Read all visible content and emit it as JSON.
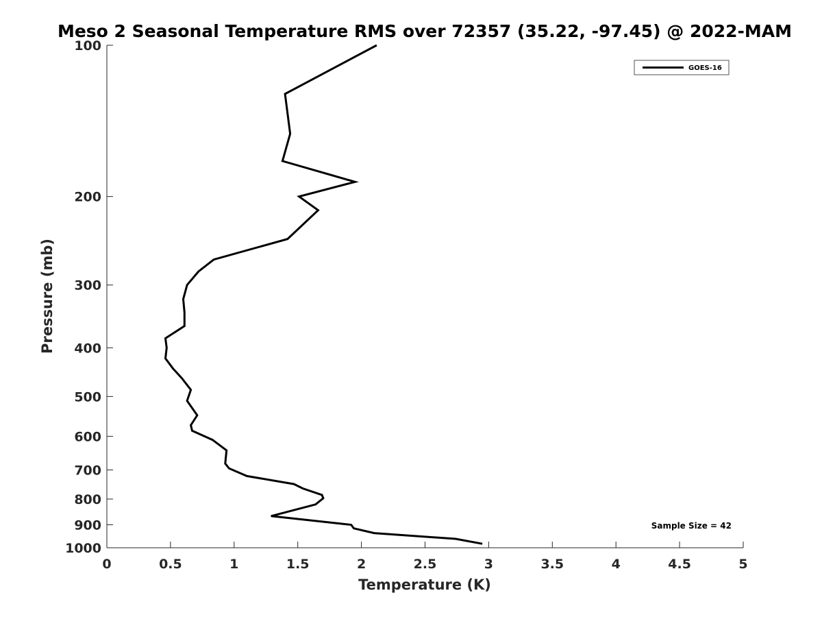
{
  "chart_data": {
    "type": "line",
    "title": "Meso 2 Seasonal Temperature RMS over 72357 (35.22, -97.45) @ 2022-MAM",
    "xlabel": "Temperature (K)",
    "ylabel": "Pressure (mb)",
    "xlim": [
      0,
      5
    ],
    "ylim": [
      100,
      1000
    ],
    "y_scale": "log",
    "y_reversed": true,
    "grid": false,
    "x_ticks": [
      0,
      0.5,
      1,
      1.5,
      2,
      2.5,
      3,
      3.5,
      4,
      4.5,
      5
    ],
    "x_tick_labels": [
      "0",
      "0.5",
      "1",
      "1.5",
      "2",
      "2.5",
      "3",
      "3.5",
      "4",
      "4.5",
      "5"
    ],
    "y_ticks": [
      100,
      200,
      300,
      400,
      500,
      600,
      700,
      800,
      900,
      1000
    ],
    "y_tick_labels": [
      "100",
      "200",
      "300",
      "400",
      "500",
      "600",
      "700",
      "800",
      "900",
      "1000"
    ],
    "legend_position": "top-right",
    "series": [
      {
        "name": "GOES-16",
        "color": "#000000",
        "x": [
          2.12,
          1.4,
          1.44,
          1.38,
          1.95,
          1.51,
          1.66,
          1.42,
          0.84,
          0.72,
          0.63,
          0.6,
          0.61,
          0.61,
          0.46,
          0.47,
          0.46,
          0.52,
          0.59,
          0.66,
          0.63,
          0.71,
          0.66,
          0.67,
          0.83,
          0.94,
          0.93,
          0.96,
          1.1,
          1.47,
          1.54,
          1.69,
          1.7,
          1.64,
          1.29,
          1.92,
          1.94,
          2.1,
          2.74,
          2.95
        ],
        "y": [
          100,
          125,
          150,
          170,
          187,
          200,
          213,
          243,
          267,
          282,
          300,
          320,
          340,
          362,
          383,
          400,
          420,
          440,
          460,
          485,
          510,
          545,
          570,
          585,
          610,
          640,
          680,
          695,
          720,
          747,
          762,
          785,
          797,
          820,
          865,
          900,
          915,
          935,
          960,
          982
        ]
      }
    ],
    "annotations": [
      "Sample Size = 42"
    ]
  }
}
